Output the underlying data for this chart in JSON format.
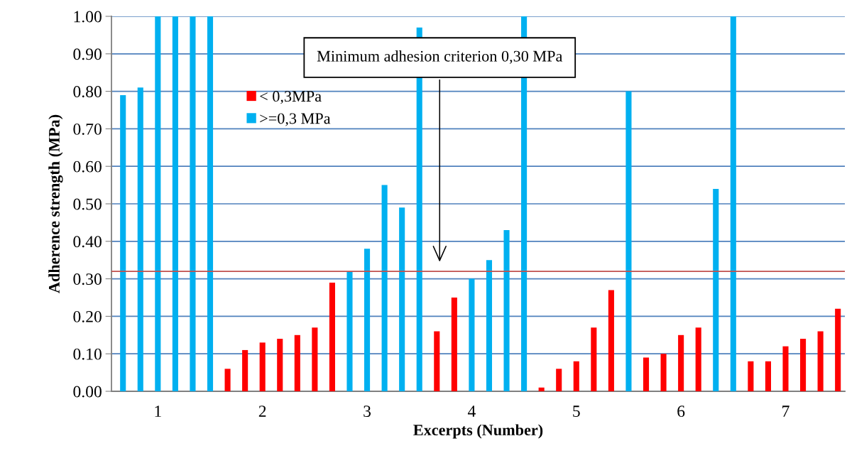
{
  "chart_data": {
    "type": "bar",
    "xlabel": "Excerpts (Number)",
    "ylabel": "Adherence strength (MPa)",
    "categories": [
      null,
      null,
      "1",
      null,
      null,
      null,
      null,
      null,
      "2",
      null,
      null,
      null,
      null,
      null,
      "3",
      null,
      null,
      null,
      null,
      null,
      "4",
      null,
      null,
      null,
      null,
      null,
      "5",
      null,
      null,
      null,
      null,
      null,
      "6",
      null,
      null,
      null,
      null,
      null,
      "7",
      null,
      null,
      null
    ],
    "series": [
      {
        "name": "< 0,3MPa",
        "color": "#ff0000",
        "values": [
          null,
          null,
          null,
          null,
          null,
          null,
          0.06,
          0.11,
          0.13,
          0.14,
          0.15,
          0.17,
          0.29,
          null,
          null,
          null,
          null,
          null,
          0.16,
          0.25,
          null,
          null,
          null,
          null,
          0.01,
          0.06,
          0.08,
          0.17,
          0.27,
          null,
          0.09,
          0.1,
          0.15,
          0.17,
          null,
          null,
          0.08,
          0.08,
          0.12,
          0.14,
          0.16,
          0.22
        ]
      },
      {
        "name": ">=0,3 MPa",
        "color": "#00b0f0",
        "values": [
          0.79,
          0.81,
          1.0,
          1.0,
          1.0,
          1.0,
          null,
          null,
          null,
          null,
          null,
          null,
          null,
          0.32,
          0.38,
          0.55,
          0.49,
          0.97,
          null,
          null,
          0.3,
          0.35,
          0.43,
          1.0,
          null,
          null,
          null,
          null,
          null,
          0.8,
          null,
          null,
          null,
          null,
          0.54,
          1.0,
          null,
          null,
          null,
          null,
          null,
          null
        ]
      }
    ],
    "ylim": [
      0,
      1
    ],
    "yticks": [
      {
        "value": 0,
        "label": "0.00"
      },
      {
        "value": 0.1,
        "label": "0.10"
      },
      {
        "value": 0.2,
        "label": "0.20"
      },
      {
        "value": 0.3,
        "label": "0.30"
      },
      {
        "value": 0.4,
        "label": "0.40"
      },
      {
        "value": 0.5,
        "label": "0.50"
      },
      {
        "value": 0.6,
        "label": "0.60"
      },
      {
        "value": 0.7,
        "label": "0.70"
      },
      {
        "value": 0.8,
        "label": "0.80"
      },
      {
        "value": 0.9,
        "label": "0.90"
      },
      {
        "value": 1.0,
        "label": "1.00"
      }
    ],
    "grid": "y",
    "legend": "top left",
    "ref_lines": [
      {
        "axis": "y",
        "value": 0.32,
        "color": "#c0504d"
      }
    ],
    "annotations": [
      "Minimum adhesion criterion 0,30 MPa"
    ]
  }
}
